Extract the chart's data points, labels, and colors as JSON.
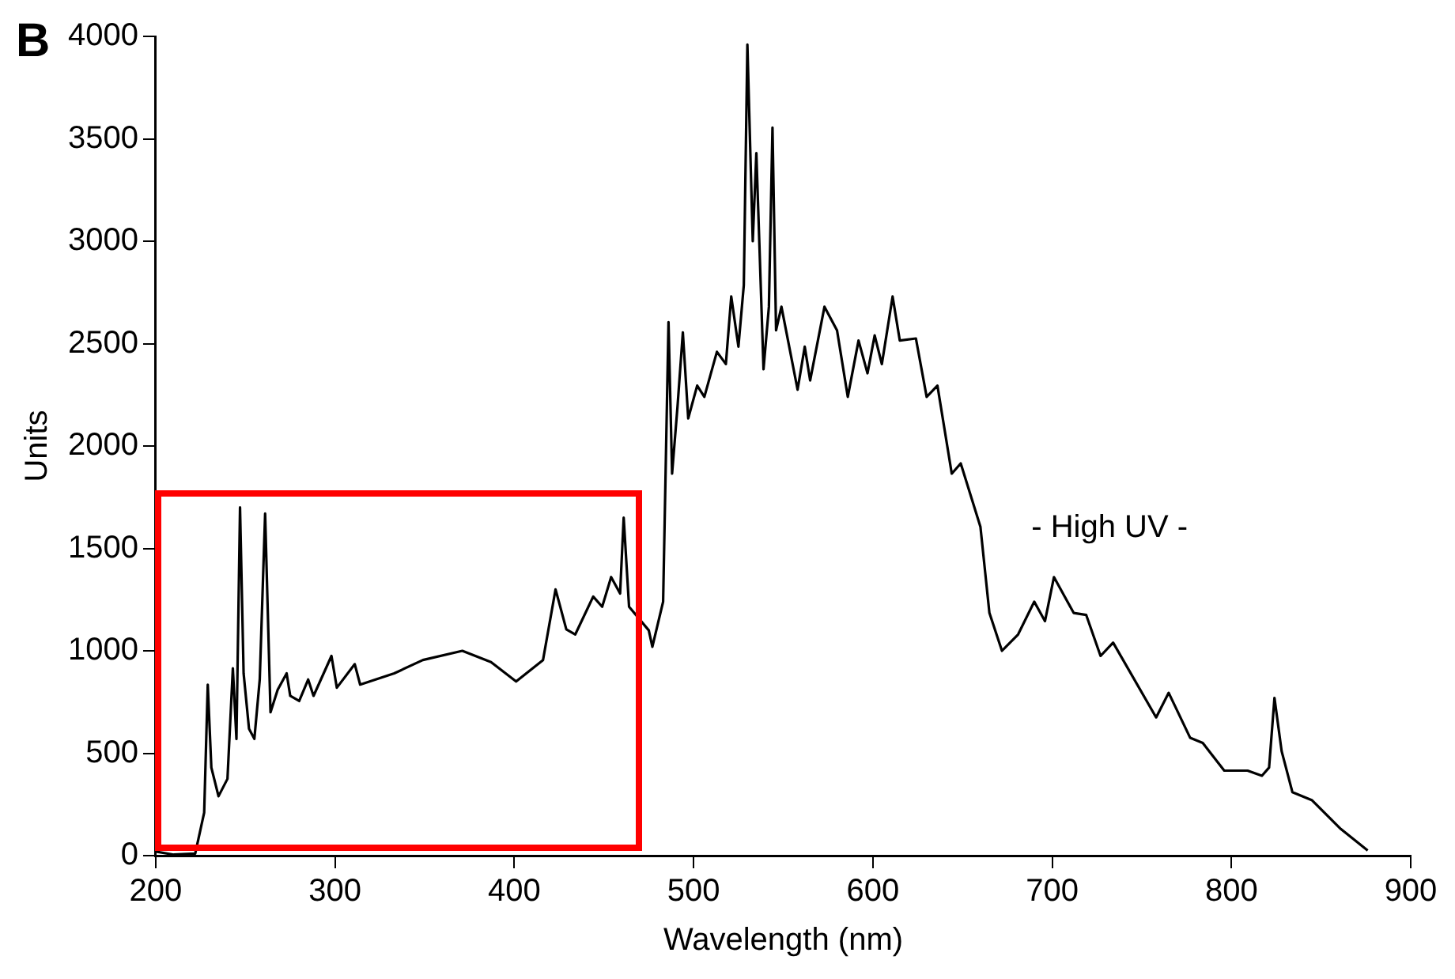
{
  "chart_data": {
    "type": "line",
    "xlabel": "Wavelength (nm)",
    "ylabel": "Units",
    "annotations": [
      "B",
      "- High UV -"
    ],
    "xlim": [
      200,
      900
    ],
    "xticks": [
      200,
      300,
      400,
      500,
      600,
      700,
      800,
      900
    ],
    "ylim": [
      0,
      4000
    ],
    "yticks": [
      0,
      500,
      1000,
      1500,
      2000,
      2500,
      3000,
      3500,
      4000
    ],
    "grid": false,
    "legend": false,
    "marker": "none",
    "line_style": "solid",
    "series": [
      {
        "color": "#000000",
        "x": [
          200,
          210,
          222,
          227,
          229,
          231,
          235,
          240,
          243,
          245,
          247,
          249,
          252,
          255,
          258,
          261,
          264,
          268,
          273,
          275,
          280,
          285,
          288,
          298,
          301,
          311,
          314,
          333,
          349,
          371,
          387,
          401,
          416,
          423,
          429,
          434,
          444,
          449,
          454,
          459,
          461,
          464,
          475,
          477,
          483,
          486,
          488,
          491,
          494,
          497,
          502,
          506,
          513,
          518,
          521,
          525,
          528,
          530,
          533,
          535,
          539,
          542,
          544,
          546,
          549,
          558,
          562,
          565,
          573,
          580,
          586,
          592,
          597,
          601,
          605,
          611,
          615,
          624,
          630,
          636,
          644,
          649,
          660,
          665,
          672,
          681,
          690,
          696,
          701,
          712,
          719,
          727,
          734,
          758,
          765,
          777,
          784,
          796,
          809,
          817,
          821,
          824,
          828,
          834,
          845,
          861,
          876
        ],
        "values": [
          20,
          5,
          10,
          210,
          835,
          430,
          290,
          375,
          915,
          570,
          1700,
          890,
          620,
          570,
          860,
          1670,
          700,
          810,
          890,
          780,
          755,
          860,
          780,
          975,
          820,
          935,
          835,
          890,
          955,
          1000,
          945,
          850,
          955,
          1300,
          1105,
          1080,
          1265,
          1215,
          1360,
          1280,
          1650,
          1215,
          1100,
          1020,
          1240,
          2605,
          1865,
          2190,
          2555,
          2135,
          2295,
          2240,
          2460,
          2400,
          2730,
          2485,
          2785,
          3960,
          3000,
          3430,
          2375,
          2680,
          3555,
          2565,
          2680,
          2275,
          2485,
          2320,
          2680,
          2565,
          2240,
          2515,
          2355,
          2540,
          2400,
          2730,
          2515,
          2525,
          2240,
          2295,
          1865,
          1915,
          1605,
          1185,
          1000,
          1080,
          1240,
          1145,
          1360,
          1185,
          1175,
          975,
          1040,
          675,
          795,
          575,
          550,
          415,
          415,
          390,
          430,
          770,
          510,
          310,
          270,
          130,
          25
        ]
      }
    ]
  }
}
